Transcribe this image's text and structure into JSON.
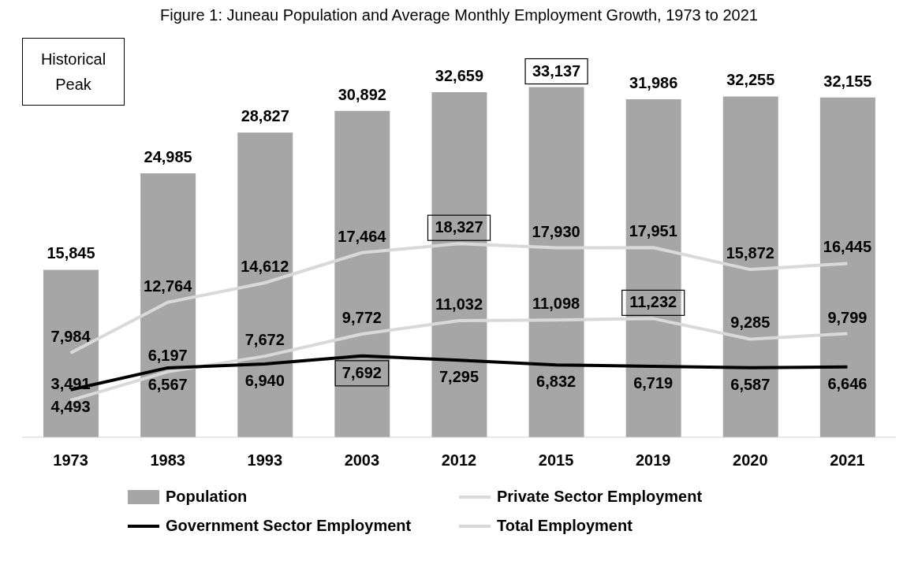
{
  "chart_data": {
    "type": "bar",
    "title": "Figure 1: Juneau Population and Average Monthly Employment Growth, 1973 to 2021",
    "categories": [
      "1973",
      "1983",
      "1993",
      "2003",
      "2012",
      "2015",
      "2019",
      "2020",
      "2021"
    ],
    "series": [
      {
        "name": "Population",
        "color": "#a6a6a6",
        "values": [
          15845,
          24985,
          28827,
          30892,
          32659,
          33137,
          31986,
          32255,
          32155
        ],
        "value_labels": [
          "15,845",
          "24,985",
          "28,827",
          "30,892",
          "32,659",
          "33,137",
          "31,986",
          "32,255",
          "32,155"
        ]
      },
      {
        "name": "Private Sector Employment",
        "type": "line",
        "color": "#d9d9d9",
        "values": [
          3491,
          6197,
          7672,
          9772,
          11032,
          11098,
          11232,
          9285,
          9799
        ],
        "value_labels": [
          "3,491",
          "6,197",
          "7,672",
          "9,772",
          "11,032",
          "11,098",
          "11,232",
          "9,285",
          "9,799"
        ]
      },
      {
        "name": "Government Sector Employment",
        "type": "line",
        "color": "#000000",
        "values": [
          4493,
          6567,
          6940,
          7692,
          7295,
          6832,
          6719,
          6587,
          6646
        ],
        "value_labels": [
          "4,493",
          "6,567",
          "6,940",
          "7,692",
          "7,295",
          "6,832",
          "6,719",
          "6,587",
          "6,646"
        ]
      },
      {
        "name": "Total Employment",
        "type": "line",
        "color": "#d9d9d9",
        "values": [
          7984,
          12764,
          14612,
          17464,
          18327,
          17930,
          17951,
          15872,
          16445
        ],
        "value_labels": [
          "7,984",
          "12,764",
          "14,612",
          "17,464",
          "18,327",
          "17,930",
          "17,951",
          "15,872",
          "16,445"
        ]
      }
    ],
    "annotations": [
      "Historical Peak"
    ],
    "grid": false,
    "legend": "bottom",
    "marker": "none",
    "line_style": "solid"
  }
}
